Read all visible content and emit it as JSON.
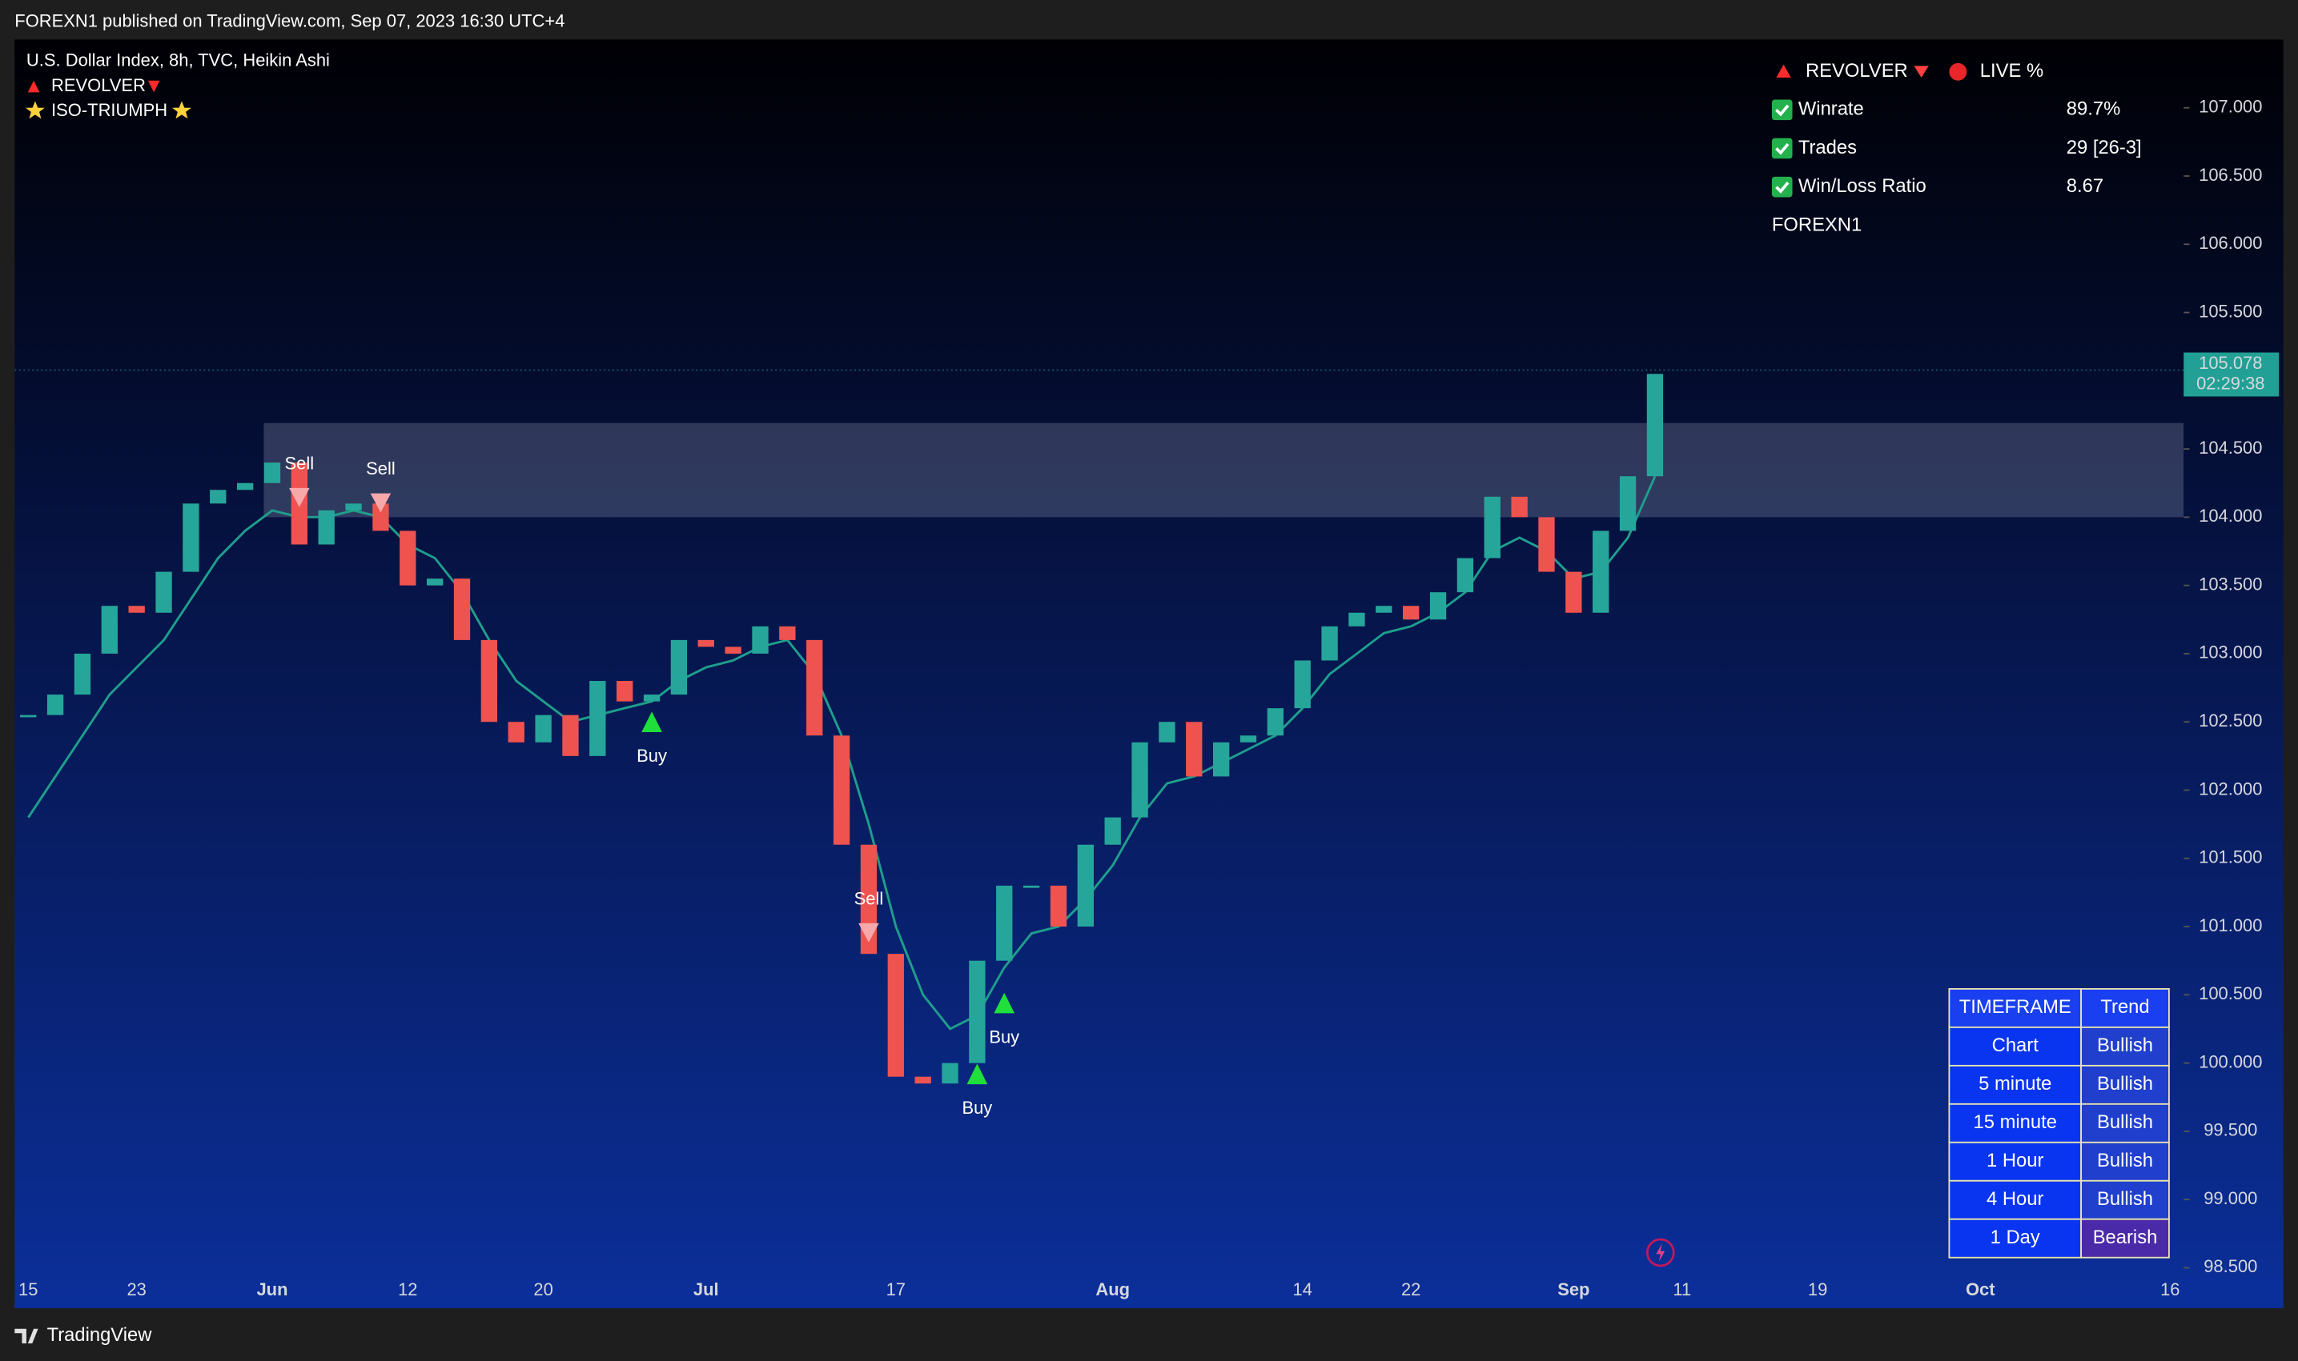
{
  "top_bar": {
    "text": "FOREXN1 published on TradingView.com, Sep 07, 2023 16:30 UTC+4"
  },
  "legend": {
    "symbol": "U.S. Dollar Index, 8h, TVC, Heikin Ashi",
    "indicators": [
      "REVOLVER",
      "ISO-TRIUMPH"
    ]
  },
  "chart_data": {
    "type": "candlestick",
    "categories": [
      "15",
      null,
      null,
      null,
      "23",
      null,
      null,
      null,
      null,
      "Jun",
      null,
      null,
      null,
      null,
      "12",
      null,
      null,
      null,
      null,
      "20",
      null,
      null,
      null,
      null,
      null,
      "Jul",
      null,
      null,
      null,
      null,
      null,
      null,
      "17",
      null,
      null,
      null,
      null,
      null,
      null,
      null,
      "Aug",
      null,
      null,
      null,
      null,
      null,
      null,
      "14",
      null,
      null,
      null,
      "22",
      null,
      null,
      null,
      null,
      null,
      "Sep",
      null,
      null,
      null,
      "11",
      null,
      null,
      null,
      null,
      "19",
      null,
      null,
      null,
      null,
      null,
      "Oct",
      null,
      null,
      null,
      null,
      null,
      null,
      "16"
    ],
    "candles": {
      "up_color": "#26a69a",
      "down_color": "#ef5350",
      "values": [
        102.55,
        102.7,
        103.0,
        103.35,
        103.3,
        103.6,
        104.1,
        104.2,
        104.25,
        104.4,
        103.8,
        104.05,
        104.1,
        103.9,
        103.5,
        103.55,
        103.1,
        102.5,
        102.35,
        102.55,
        102.25,
        102.8,
        102.65,
        102.7,
        103.1,
        103.05,
        103.0,
        103.2,
        103.1,
        102.4,
        101.6,
        100.8,
        99.9,
        99.85,
        100.0,
        100.75,
        101.3,
        101.3,
        101.0,
        101.6,
        101.8,
        102.35,
        102.5,
        102.1,
        102.35,
        102.4,
        102.6,
        102.95,
        103.2,
        103.3,
        103.35,
        103.25,
        103.45,
        103.7,
        104.15,
        104.0,
        103.6,
        103.3,
        103.9,
        104.3,
        105.05,
        null,
        null,
        null,
        null,
        null,
        null,
        null,
        null,
        null,
        null,
        null,
        null,
        null,
        null,
        null,
        null,
        null,
        null,
        null
      ]
    },
    "trail": {
      "color": "#1f9e8c",
      "values": [
        101.8,
        102.1,
        102.4,
        102.7,
        102.9,
        103.1,
        103.4,
        103.7,
        103.9,
        104.05,
        104.0,
        104.0,
        104.05,
        104.0,
        103.8,
        103.7,
        103.45,
        103.1,
        102.8,
        102.65,
        102.5,
        102.55,
        102.6,
        102.65,
        102.8,
        102.9,
        102.95,
        103.05,
        103.1,
        102.85,
        102.4,
        101.75,
        101.0,
        100.5,
        100.25,
        100.35,
        100.7,
        100.95,
        101.0,
        101.2,
        101.45,
        101.8,
        102.05,
        102.1,
        102.2,
        102.3,
        102.4,
        102.6,
        102.85,
        103.0,
        103.15,
        103.2,
        103.3,
        103.45,
        103.75,
        103.85,
        103.75,
        103.55,
        103.6,
        103.85,
        104.3,
        null,
        null,
        null,
        null,
        null,
        null,
        null,
        null,
        null,
        null,
        null,
        null,
        null,
        null,
        null,
        null,
        null,
        null,
        null
      ]
    },
    "zone": [
      104.0,
      104.69
    ],
    "signals": [
      {
        "label": "Sell",
        "index": 10,
        "price": 104.15
      },
      {
        "label": "Sell",
        "index": 13,
        "price": 104.11
      },
      {
        "label": "Buy",
        "index": 23,
        "price": 102.5
      },
      {
        "label": "Sell",
        "index": 31,
        "price": 100.96
      },
      {
        "label": "Buy",
        "index": 35,
        "price": 99.92
      },
      {
        "label": "Buy",
        "index": 36,
        "price": 100.44
      }
    ],
    "ylim": [
      98.45,
      107.5
    ],
    "yticks": [
      {
        "value": 98.5,
        "label": "98.500"
      },
      {
        "value": 99,
        "label": "99.000"
      },
      {
        "value": 99.5,
        "label": "99.500"
      },
      {
        "value": 100,
        "label": "100.000"
      },
      {
        "value": 100.5,
        "label": "100.500"
      },
      {
        "value": 101,
        "label": "101.000"
      },
      {
        "value": 101.5,
        "label": "101.500"
      },
      {
        "value": 102,
        "label": "102.000"
      },
      {
        "value": 102.5,
        "label": "102.500"
      },
      {
        "value": 103,
        "label": "103.000"
      },
      {
        "value": 103.5,
        "label": "103.500"
      },
      {
        "value": 104,
        "label": "104.000"
      },
      {
        "value": 104.5,
        "label": "104.500"
      },
      {
        "value": 105,
        "label": "105.000"
      },
      {
        "value": 105.5,
        "label": "105.500"
      },
      {
        "value": 106,
        "label": "106.000"
      },
      {
        "value": 106.5,
        "label": "106.500"
      },
      {
        "value": 107,
        "label": "107.000"
      }
    ],
    "last_price": 105.078,
    "countdown": "02:29:38",
    "grid": false
  },
  "stats_table": {
    "title": "REVOLVER",
    "status": "LIVE %",
    "rows": [
      [
        "Winrate",
        "89.7%"
      ],
      [
        "Trades",
        "29 [26-3]"
      ],
      [
        "Win/Loss Ratio",
        "8.67"
      ]
    ],
    "author": "FOREXN1"
  },
  "trend_table": {
    "header": [
      "TIMEFRAME",
      "Trend"
    ],
    "rows": [
      {
        "timeframe": "Chart",
        "trend": "Bullish",
        "color": "#4caf50"
      },
      {
        "timeframe": "5 minute",
        "trend": "Bullish",
        "color": "#4caf50"
      },
      {
        "timeframe": "15 minute",
        "trend": "Bullish",
        "color": "#4caf50"
      },
      {
        "timeframe": "1 Hour",
        "trend": "Bullish",
        "color": "#4caf50"
      },
      {
        "timeframe": "4 Hour",
        "trend": "Bullish",
        "color": "#4caf50"
      },
      {
        "timeframe": "1 Day",
        "trend": "Bearish",
        "color": "#f0506e"
      }
    ]
  },
  "footer": {
    "brand": "TradingView"
  }
}
